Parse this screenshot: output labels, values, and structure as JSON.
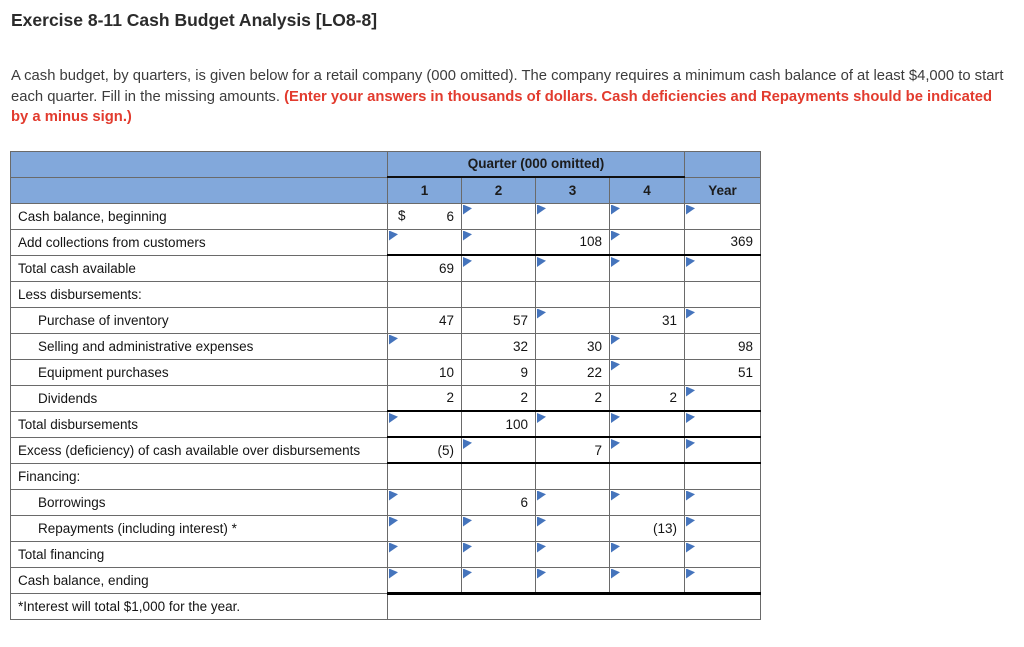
{
  "title": "Exercise 8-11 Cash Budget Analysis [LO8-8]",
  "intro": {
    "normal": "A cash budget, by quarters, is given below for a retail company (000 omitted). The company requires a minimum cash balance of at least $4,000 to start each quarter. Fill in the missing amounts. ",
    "emphasis": "(Enter your answers in thousands of dollars. Cash deficiencies and Repayments should be indicated by a minus sign.)"
  },
  "table": {
    "quarter_header": "Quarter (000 omitted)",
    "column_headers": [
      "1",
      "2",
      "3",
      "4",
      "Year"
    ],
    "rows": [
      {
        "label": "Cash balance, beginning",
        "indent": false,
        "cells": [
          {
            "prefix": "$",
            "value": "6",
            "marker": false
          },
          {
            "value": "",
            "marker": true
          },
          {
            "value": "",
            "marker": true
          },
          {
            "value": "",
            "marker": true
          },
          {
            "value": "",
            "marker": true
          }
        ]
      },
      {
        "label": "Add collections from customers",
        "indent": false,
        "cells": [
          {
            "value": "",
            "marker": true
          },
          {
            "value": "",
            "marker": true
          },
          {
            "value": "108",
            "marker": false
          },
          {
            "value": "",
            "marker": true
          },
          {
            "value": "369",
            "marker": false
          }
        ]
      },
      {
        "label": "Total cash available",
        "indent": false,
        "thick_top": true,
        "cells": [
          {
            "value": "69",
            "marker": false
          },
          {
            "value": "",
            "marker": true
          },
          {
            "value": "",
            "marker": true
          },
          {
            "value": "",
            "marker": true
          },
          {
            "value": "",
            "marker": true
          }
        ]
      },
      {
        "label": "Less disbursements:",
        "indent": false,
        "cells": [
          {
            "value": "",
            "marker": false
          },
          {
            "value": "",
            "marker": false
          },
          {
            "value": "",
            "marker": false
          },
          {
            "value": "",
            "marker": false
          },
          {
            "value": "",
            "marker": false
          }
        ]
      },
      {
        "label": "Purchase of inventory",
        "indent": true,
        "cells": [
          {
            "value": "47",
            "marker": false
          },
          {
            "value": "57",
            "marker": false
          },
          {
            "value": "",
            "marker": true
          },
          {
            "value": "31",
            "marker": false
          },
          {
            "value": "",
            "marker": true
          }
        ]
      },
      {
        "label": "Selling and administrative expenses",
        "indent": true,
        "cells": [
          {
            "value": "",
            "marker": true
          },
          {
            "value": "32",
            "marker": false
          },
          {
            "value": "30",
            "marker": false
          },
          {
            "value": "",
            "marker": true
          },
          {
            "value": "98",
            "marker": false
          }
        ]
      },
      {
        "label": "Equipment purchases",
        "indent": true,
        "cells": [
          {
            "value": "10",
            "marker": false
          },
          {
            "value": "9",
            "marker": false
          },
          {
            "value": "22",
            "marker": false
          },
          {
            "value": "",
            "marker": true
          },
          {
            "value": "51",
            "marker": false
          }
        ]
      },
      {
        "label": "Dividends",
        "indent": true,
        "cells": [
          {
            "value": "2",
            "marker": false
          },
          {
            "value": "2",
            "marker": false
          },
          {
            "value": "2",
            "marker": false
          },
          {
            "value": "2",
            "marker": false
          },
          {
            "value": "",
            "marker": true
          }
        ]
      },
      {
        "label": "Total disbursements",
        "indent": false,
        "thick_top": true,
        "cells": [
          {
            "value": "",
            "marker": true
          },
          {
            "value": "100",
            "marker": false
          },
          {
            "value": "",
            "marker": true
          },
          {
            "value": "",
            "marker": true
          },
          {
            "value": "",
            "marker": true
          }
        ]
      },
      {
        "label": "Excess (deficiency) of cash available over disbursements",
        "indent": false,
        "thick_top": true,
        "thick_bottom": true,
        "cells": [
          {
            "value": "(5)",
            "marker": false
          },
          {
            "value": "",
            "marker": true
          },
          {
            "value": "7",
            "marker": false
          },
          {
            "value": "",
            "marker": true
          },
          {
            "value": "",
            "marker": true
          }
        ]
      },
      {
        "label": "Financing:",
        "indent": false,
        "cells": [
          {
            "value": "",
            "marker": false
          },
          {
            "value": "",
            "marker": false
          },
          {
            "value": "",
            "marker": false
          },
          {
            "value": "",
            "marker": false
          },
          {
            "value": "",
            "marker": false
          }
        ]
      },
      {
        "label": "Borrowings",
        "indent": true,
        "cells": [
          {
            "value": "",
            "marker": true
          },
          {
            "value": "6",
            "marker": false
          },
          {
            "value": "",
            "marker": true
          },
          {
            "value": "",
            "marker": true
          },
          {
            "value": "",
            "marker": true
          }
        ]
      },
      {
        "label": "Repayments (including interest) *",
        "indent": true,
        "cells": [
          {
            "value": "",
            "marker": true
          },
          {
            "value": "",
            "marker": true
          },
          {
            "value": "",
            "marker": true
          },
          {
            "value": "(13)",
            "marker": false
          },
          {
            "value": "",
            "marker": true
          }
        ]
      },
      {
        "label": "Total financing",
        "indent": false,
        "cells": [
          {
            "value": "",
            "marker": true
          },
          {
            "value": "",
            "marker": true
          },
          {
            "value": "",
            "marker": true
          },
          {
            "value": "",
            "marker": true
          },
          {
            "value": "",
            "marker": true
          }
        ]
      },
      {
        "label": "Cash balance, ending",
        "indent": false,
        "final_bottom": true,
        "cells": [
          {
            "value": "",
            "marker": true
          },
          {
            "value": "",
            "marker": true
          },
          {
            "value": "",
            "marker": true
          },
          {
            "value": "",
            "marker": true
          },
          {
            "value": "",
            "marker": true
          }
        ]
      }
    ],
    "footnote": "*Interest will total $1,000 for the year."
  },
  "colors": {
    "header_blue": "#82a8db",
    "marker_blue": "#4574bc",
    "instruction_red": "#e23b2e",
    "thick_border": "#000000"
  }
}
